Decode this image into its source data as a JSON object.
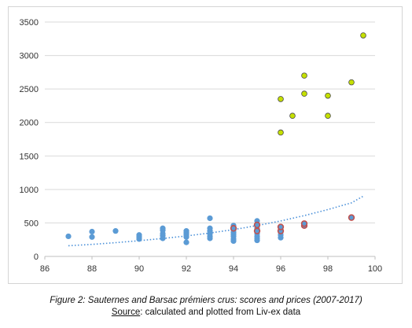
{
  "chart_data": {
    "type": "scatter",
    "title": "",
    "xlabel": "",
    "ylabel": "",
    "xlim": [
      86,
      100
    ],
    "ylim": [
      0,
      3500
    ],
    "x_ticks": [
      "86",
      "88",
      "90",
      "92",
      "94",
      "96",
      "98",
      "100"
    ],
    "y_ticks": [
      "0",
      "500",
      "1000",
      "1500",
      "2000",
      "2500",
      "3000",
      "3500"
    ],
    "grid": "horizontal",
    "legend": "none",
    "colors": {
      "blue": "#5b9bd5",
      "green": "#c5e000",
      "red_marker": "#c0504d",
      "green_outline": "#4a4a4a",
      "trendline": "#4a90d9",
      "grid": "#d9d9d9"
    },
    "series": [
      {
        "style": "blue",
        "points": [
          [
            87,
            300
          ],
          [
            88,
            290
          ],
          [
            88,
            370
          ],
          [
            89,
            380
          ],
          [
            90,
            260
          ],
          [
            90,
            290
          ],
          [
            90,
            320
          ],
          [
            91,
            270
          ],
          [
            91,
            310
          ],
          [
            91,
            340
          ],
          [
            91,
            390
          ],
          [
            91,
            420
          ],
          [
            92,
            210
          ],
          [
            92,
            290
          ],
          [
            92,
            320
          ],
          [
            92,
            350
          ],
          [
            92,
            380
          ],
          [
            93,
            270
          ],
          [
            93,
            300
          ],
          [
            93,
            340
          ],
          [
            93,
            380
          ],
          [
            93,
            420
          ],
          [
            93,
            570
          ],
          [
            94,
            230
          ],
          [
            94,
            260
          ],
          [
            94,
            300
          ],
          [
            94,
            330
          ],
          [
            94,
            360
          ],
          [
            94,
            400
          ],
          [
            94,
            430
          ],
          [
            94,
            460
          ],
          [
            95,
            240
          ],
          [
            95,
            270
          ],
          [
            95,
            300
          ],
          [
            95,
            340
          ],
          [
            95,
            370
          ],
          [
            95,
            420
          ],
          [
            95,
            470
          ],
          [
            95,
            530
          ],
          [
            96,
            280
          ],
          [
            96,
            320
          ],
          [
            96,
            360
          ],
          [
            96,
            390
          ]
        ]
      },
      {
        "style": "red",
        "points": [
          [
            94,
            420
          ],
          [
            95,
            380
          ],
          [
            95,
            470
          ],
          [
            96,
            380
          ],
          [
            96,
            440
          ],
          [
            97,
            460
          ],
          [
            97,
            490
          ],
          [
            99,
            580
          ]
        ]
      },
      {
        "style": "green",
        "points": [
          [
            96,
            1850
          ],
          [
            96,
            2350
          ],
          [
            96.5,
            2100
          ],
          [
            97,
            2430
          ],
          [
            97,
            2700
          ],
          [
            98,
            2100
          ],
          [
            98,
            2400
          ],
          [
            99,
            2600
          ],
          [
            99.5,
            3300
          ]
        ]
      }
    ],
    "trendline": {
      "type": "exponential",
      "x": [
        87,
        88,
        89,
        90,
        91,
        92,
        93,
        94,
        95,
        96,
        97,
        98,
        99,
        99.5
      ],
      "y": [
        160,
        180,
        205,
        235,
        268,
        305,
        350,
        400,
        460,
        530,
        610,
        700,
        800,
        900
      ]
    }
  },
  "caption": {
    "line1": "Figure 2: Sauternes and Barsac prémiers crus: scores and prices (2007-2017)",
    "source_label": "Source",
    "source_text": ": calculated and plotted from Liv-ex data"
  }
}
